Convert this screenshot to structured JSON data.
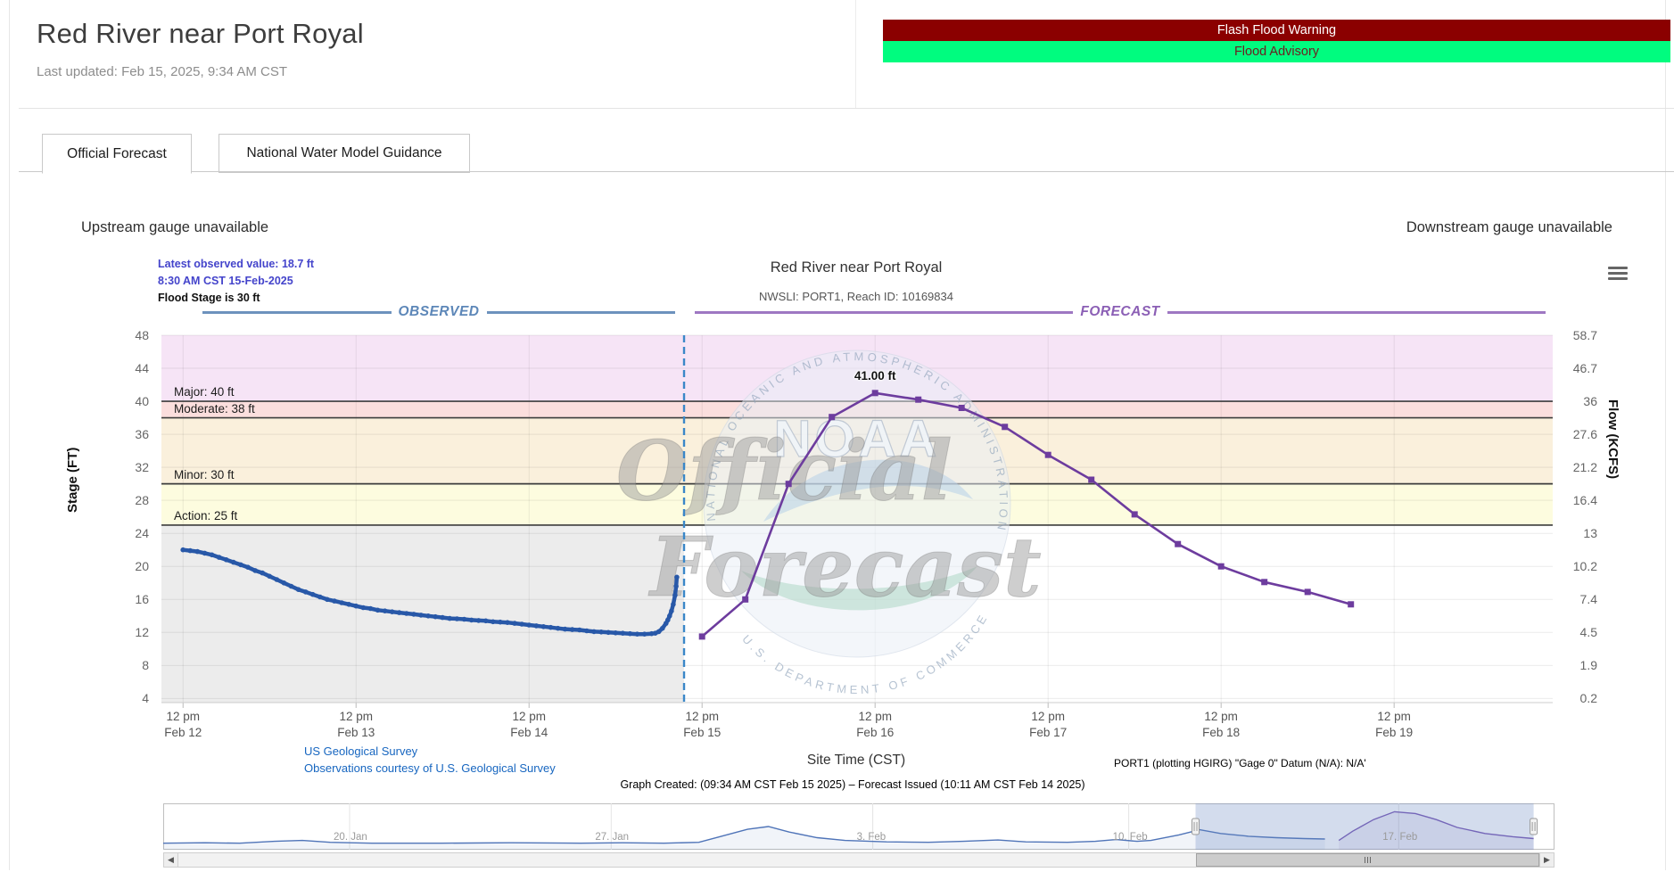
{
  "page": {
    "title": "Red River near Port Royal",
    "last_updated": "Last updated: Feb 15, 2025, 9:34 AM CST"
  },
  "alerts": [
    {
      "label": "Flash Flood Warning",
      "bg": "#8b0000",
      "fg": "#ffffff"
    },
    {
      "label": "Flood Advisory",
      "bg": "#00fc7f",
      "fg": "#6b2020"
    }
  ],
  "tabs": [
    {
      "label": "Official Forecast",
      "active": true
    },
    {
      "label": "National Water Model Guidance",
      "active": false
    }
  ],
  "gauge_notes": {
    "upstream": "Upstream gauge unavailable",
    "downstream": "Downstream gauge unavailable"
  },
  "chart_header": {
    "latest_observed": "Latest observed value: 18.7 ft",
    "latest_observed_time": "8:30 AM CST 15-Feb-2025",
    "flood_stage": "Flood Stage is 30 ft",
    "title": "Red River near Port Royal",
    "subtitle": "NWSLI: PORT1, Reach ID: 10169834",
    "observed_label": "OBSERVED",
    "forecast_label": "FORECAST"
  },
  "footer": {
    "usgs_link_1": "US Geological Survey",
    "usgs_link_2": "Observations courtesy of U.S. Geological Survey",
    "site_time": "Site Time (CST)",
    "datum_note": "PORT1 (plotting HGIRG) \"Gage 0\" Datum (N/A): N/A'",
    "graph_created": "Graph Created: (09:34 AM CST Feb 15 2025) – Forecast Issued (10:11 AM CST Feb 14 2025)"
  },
  "chart_data": {
    "type": "line",
    "title": "Red River near Port Royal",
    "subtitle": "NWSLI: PORT1, Reach ID: 10169834",
    "xlabel": "Site Time (CST)",
    "ylabel_left": "Stage (FT)",
    "ylabel_right": "Flow (KCFS)",
    "stage_ticks": [
      48,
      44,
      40,
      36,
      32,
      28,
      24,
      20,
      16,
      12,
      8,
      4
    ],
    "flow_ticks": [
      "58.7",
      "46.7",
      "36",
      "27.6",
      "21.2",
      "16.4",
      "13",
      "10.2",
      "7.4",
      "4.5",
      "1.9",
      "0.2"
    ],
    "stage_domain": [
      3.5,
      48
    ],
    "time_domain_hours": [
      0,
      193
    ],
    "x_ticks": [
      {
        "t": 3,
        "line1": "12 pm",
        "line2": "Feb 12"
      },
      {
        "t": 27,
        "line1": "12 pm",
        "line2": "Feb 13"
      },
      {
        "t": 51,
        "line1": "12 pm",
        "line2": "Feb 14"
      },
      {
        "t": 75,
        "line1": "12 pm",
        "line2": "Feb 15"
      },
      {
        "t": 99,
        "line1": "12 pm",
        "line2": "Feb 16"
      },
      {
        "t": 123,
        "line1": "12 pm",
        "line2": "Feb 17"
      },
      {
        "t": 147,
        "line1": "12 pm",
        "line2": "Feb 18"
      },
      {
        "t": 171,
        "line1": "12 pm",
        "line2": "Feb 19"
      }
    ],
    "thresholds": [
      {
        "name": "major",
        "label": "Major: 40 ft",
        "value": 40
      },
      {
        "name": "moderate",
        "label": "Moderate: 38 ft",
        "value": 38
      },
      {
        "name": "minor",
        "label": "Minor: 30 ft",
        "value": 30
      },
      {
        "name": "action",
        "label": "Action: 25 ft",
        "value": 25
      }
    ],
    "bands": [
      {
        "from": 40,
        "to": 48,
        "color": "#f6e4f6"
      },
      {
        "from": 38,
        "to": 40,
        "color": "#fbdedd"
      },
      {
        "from": 30,
        "to": 38,
        "color": "#faf0dc"
      },
      {
        "from": 25,
        "to": 30,
        "color": "#fdfcdf"
      }
    ],
    "observed_region": {
      "from_t": 0,
      "to_t": 72.5,
      "below_stage": 25,
      "color": "#ececec"
    },
    "divider_t": 72.5,
    "divider_color": "#3a87c8",
    "series": [
      {
        "name": "Observed",
        "color": "#2858a8",
        "points": [
          [
            3,
            22.0
          ],
          [
            4,
            21.9
          ],
          [
            5,
            21.8
          ],
          [
            6,
            21.6
          ],
          [
            7,
            21.4
          ],
          [
            8,
            21.1
          ],
          [
            9,
            20.8
          ],
          [
            10,
            20.5
          ],
          [
            11,
            20.2
          ],
          [
            12,
            19.9
          ],
          [
            13,
            19.5
          ],
          [
            14,
            19.2
          ],
          [
            15,
            18.8
          ],
          [
            16,
            18.4
          ],
          [
            17,
            18.0
          ],
          [
            18,
            17.6
          ],
          [
            19,
            17.2
          ],
          [
            20,
            16.9
          ],
          [
            21,
            16.6
          ],
          [
            22,
            16.3
          ],
          [
            23,
            16.0
          ],
          [
            24,
            15.8
          ],
          [
            25,
            15.6
          ],
          [
            26,
            15.4
          ],
          [
            27,
            15.2
          ],
          [
            28,
            15.0
          ],
          [
            29,
            14.9
          ],
          [
            30,
            14.7
          ],
          [
            31,
            14.6
          ],
          [
            32,
            14.5
          ],
          [
            33,
            14.4
          ],
          [
            34,
            14.3
          ],
          [
            35,
            14.2
          ],
          [
            36,
            14.1
          ],
          [
            37,
            14.0
          ],
          [
            38,
            13.9
          ],
          [
            39,
            13.8
          ],
          [
            40,
            13.7
          ],
          [
            41,
            13.65
          ],
          [
            42,
            13.6
          ],
          [
            43,
            13.5
          ],
          [
            44,
            13.45
          ],
          [
            45,
            13.4
          ],
          [
            46,
            13.3
          ],
          [
            47,
            13.25
          ],
          [
            48,
            13.2
          ],
          [
            49,
            13.1
          ],
          [
            50,
            13.0
          ],
          [
            51,
            12.9
          ],
          [
            52,
            12.8
          ],
          [
            53,
            12.7
          ],
          [
            54,
            12.6
          ],
          [
            55,
            12.5
          ],
          [
            56,
            12.4
          ],
          [
            57,
            12.35
          ],
          [
            58,
            12.3
          ],
          [
            59,
            12.2
          ],
          [
            60,
            12.1
          ],
          [
            61,
            12.05
          ],
          [
            62,
            12.0
          ],
          [
            63,
            11.95
          ],
          [
            64,
            11.9
          ],
          [
            65,
            11.85
          ],
          [
            66,
            11.8
          ],
          [
            67,
            11.8
          ],
          [
            68,
            11.85
          ],
          [
            68.5,
            11.9
          ],
          [
            69,
            12.1
          ],
          [
            69.5,
            12.5
          ],
          [
            70,
            13.1
          ],
          [
            70.25,
            13.5
          ],
          [
            70.5,
            14.0
          ],
          [
            70.75,
            14.6
          ],
          [
            71,
            15.4
          ],
          [
            71.25,
            16.5
          ],
          [
            71.4,
            17.6
          ],
          [
            71.5,
            18.7
          ]
        ]
      },
      {
        "name": "Forecast",
        "color": "#6d3c9e",
        "points": [
          [
            75,
            11.5
          ],
          [
            81,
            16.0
          ],
          [
            87,
            30.0
          ],
          [
            93,
            38.1
          ],
          [
            99,
            41.0
          ],
          [
            105,
            40.2
          ],
          [
            111,
            39.2
          ],
          [
            117,
            36.9
          ],
          [
            123,
            33.5
          ],
          [
            129,
            30.5
          ],
          [
            135,
            26.3
          ],
          [
            141,
            22.7
          ],
          [
            147,
            20.0
          ],
          [
            153,
            18.1
          ],
          [
            159,
            16.9
          ],
          [
            165,
            15.4
          ]
        ]
      }
    ],
    "annotation": {
      "text": "41.00 ft",
      "t": 99,
      "value": 41.0
    },
    "watermark": {
      "noaa": "NOAA",
      "line1": "Official",
      "line2": "Forecast",
      "arc_top": "NATIONAL OCEANIC AND ATMOSPHERIC ADMINISTRATION",
      "arc_bottom": "U.S. DEPARTMENT OF COMMERCE"
    }
  },
  "navigator": {
    "labels": [
      {
        "text": "20. Jan",
        "x": 0.134
      },
      {
        "text": "27. Jan",
        "x": 0.322
      },
      {
        "text": "3. Feb",
        "x": 0.51
      },
      {
        "text": "10. Feb",
        "x": 0.694
      },
      {
        "text": "17. Feb",
        "x": 0.888
      }
    ],
    "selected_range": [
      0.742,
      0.985
    ],
    "selection_color": "#6685c24a",
    "observed_line": [
      [
        0,
        0.86
      ],
      [
        0.03,
        0.85
      ],
      [
        0.055,
        0.86
      ],
      [
        0.08,
        0.82
      ],
      [
        0.1,
        0.8
      ],
      [
        0.12,
        0.84
      ],
      [
        0.15,
        0.86
      ],
      [
        0.2,
        0.86
      ],
      [
        0.25,
        0.85
      ],
      [
        0.3,
        0.86
      ],
      [
        0.33,
        0.85
      ],
      [
        0.36,
        0.86
      ],
      [
        0.385,
        0.84
      ],
      [
        0.4,
        0.72
      ],
      [
        0.42,
        0.56
      ],
      [
        0.435,
        0.5
      ],
      [
        0.45,
        0.62
      ],
      [
        0.47,
        0.74
      ],
      [
        0.49,
        0.8
      ],
      [
        0.52,
        0.83
      ],
      [
        0.55,
        0.84
      ],
      [
        0.575,
        0.82
      ],
      [
        0.6,
        0.79
      ],
      [
        0.62,
        0.83
      ],
      [
        0.65,
        0.84
      ],
      [
        0.67,
        0.82
      ],
      [
        0.685,
        0.78
      ],
      [
        0.7,
        0.82
      ],
      [
        0.71,
        0.8
      ],
      [
        0.73,
        0.68
      ],
      [
        0.745,
        0.57
      ],
      [
        0.76,
        0.65
      ],
      [
        0.78,
        0.71
      ],
      [
        0.8,
        0.74
      ],
      [
        0.82,
        0.76
      ],
      [
        0.835,
        0.77
      ]
    ],
    "forecast_line": [
      [
        0.845,
        0.8
      ],
      [
        0.855,
        0.6
      ],
      [
        0.87,
        0.35
      ],
      [
        0.885,
        0.18
      ],
      [
        0.9,
        0.22
      ],
      [
        0.915,
        0.35
      ],
      [
        0.93,
        0.52
      ],
      [
        0.95,
        0.65
      ],
      [
        0.97,
        0.72
      ],
      [
        0.985,
        0.76
      ]
    ],
    "observed_color": "#4f74b8",
    "forecast_color": "#7a5ab5"
  }
}
